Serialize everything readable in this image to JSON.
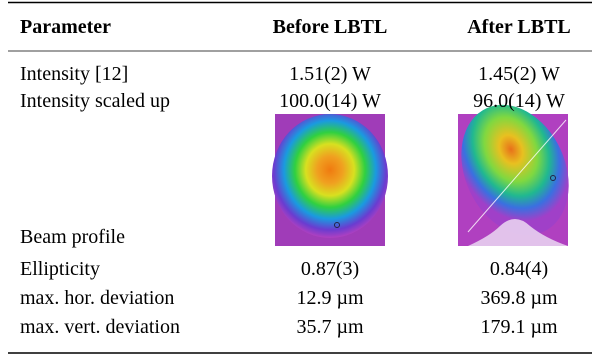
{
  "table": {
    "header": [
      "Parameter",
      "Before LBTL",
      "After LBTL"
    ],
    "rows": [
      [
        "Intensity [12]",
        "1.51(2) W",
        "1.45(2) W"
      ],
      [
        "Intensity scaled up",
        "100.0(14) W",
        "96.0(14) W"
      ],
      [
        "Beam profile"
      ],
      [
        "Ellipticity",
        "0.87(3)",
        "0.84(4)"
      ],
      [
        "max. hor. deviation",
        "12.9 µm",
        "369.8 µm"
      ],
      [
        "max. vert. deviation",
        "35.7 µm",
        "179.1 µm"
      ]
    ]
  }
}
